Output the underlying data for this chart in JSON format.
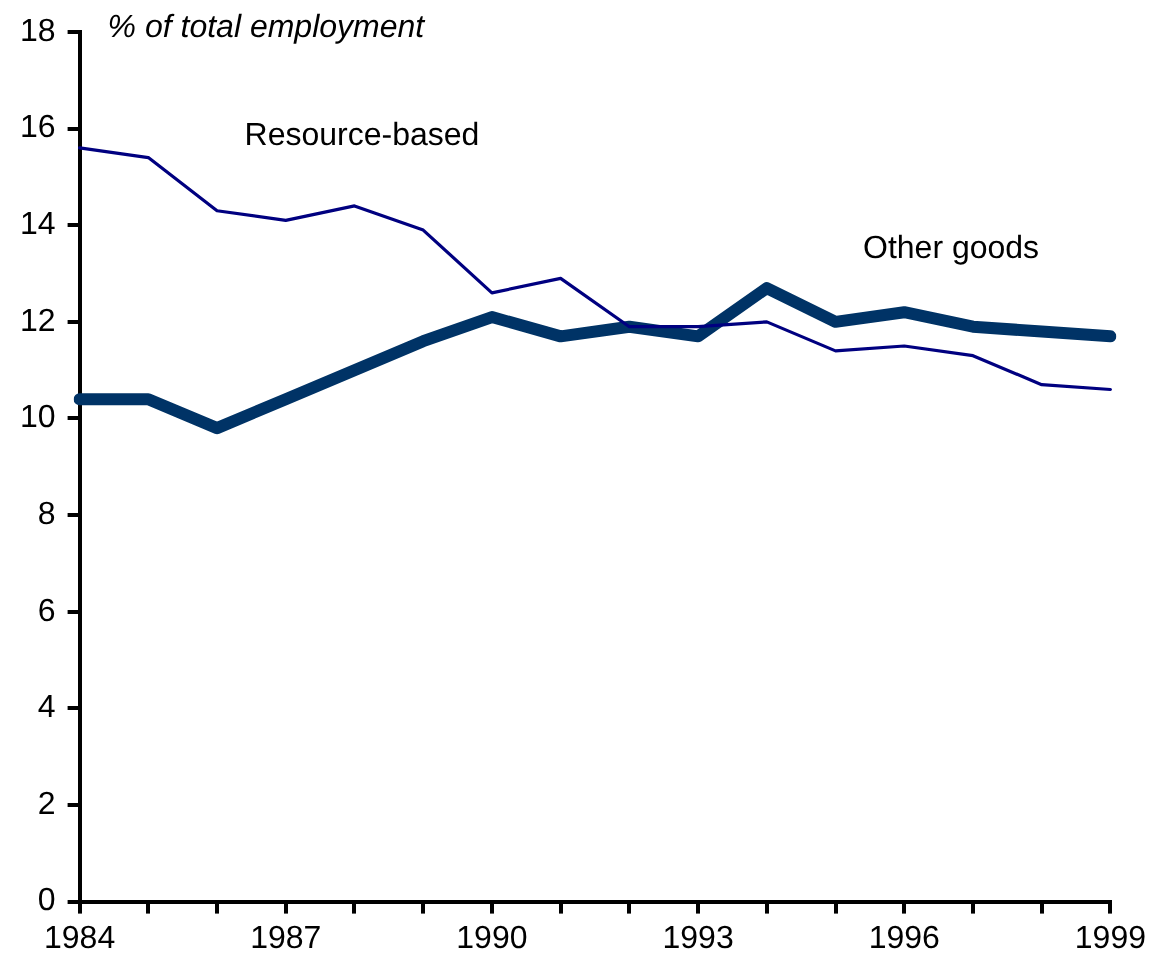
{
  "chart_data": {
    "type": "line",
    "ylabel": "% of total employment",
    "categories": [
      "1984",
      null,
      null,
      "1987",
      null,
      null,
      "1990",
      null,
      null,
      "1993",
      null,
      null,
      "1996",
      null,
      null,
      "1999"
    ],
    "series": [
      {
        "name": "Resource-based",
        "color": "#000080",
        "values": [
          15.6,
          15.4,
          14.3,
          14.1,
          14.4,
          13.9,
          12.6,
          12.9,
          11.9,
          11.9,
          12.0,
          11.4,
          11.5,
          11.3,
          10.7,
          10.6
        ]
      },
      {
        "name": "Other goods",
        "color": "#003366",
        "values": [
          10.4,
          10.4,
          9.8,
          10.4,
          11.0,
          11.6,
          12.1,
          11.7,
          11.9,
          11.7,
          12.7,
          12.0,
          12.2,
          11.9,
          11.8,
          11.7
        ]
      }
    ],
    "ylim": [
      0,
      18
    ],
    "yticks": [
      0,
      2,
      4,
      6,
      8,
      10,
      12,
      14,
      16,
      18
    ],
    "grid": false,
    "legend": false,
    "marker": "none",
    "line_style": "solid"
  }
}
